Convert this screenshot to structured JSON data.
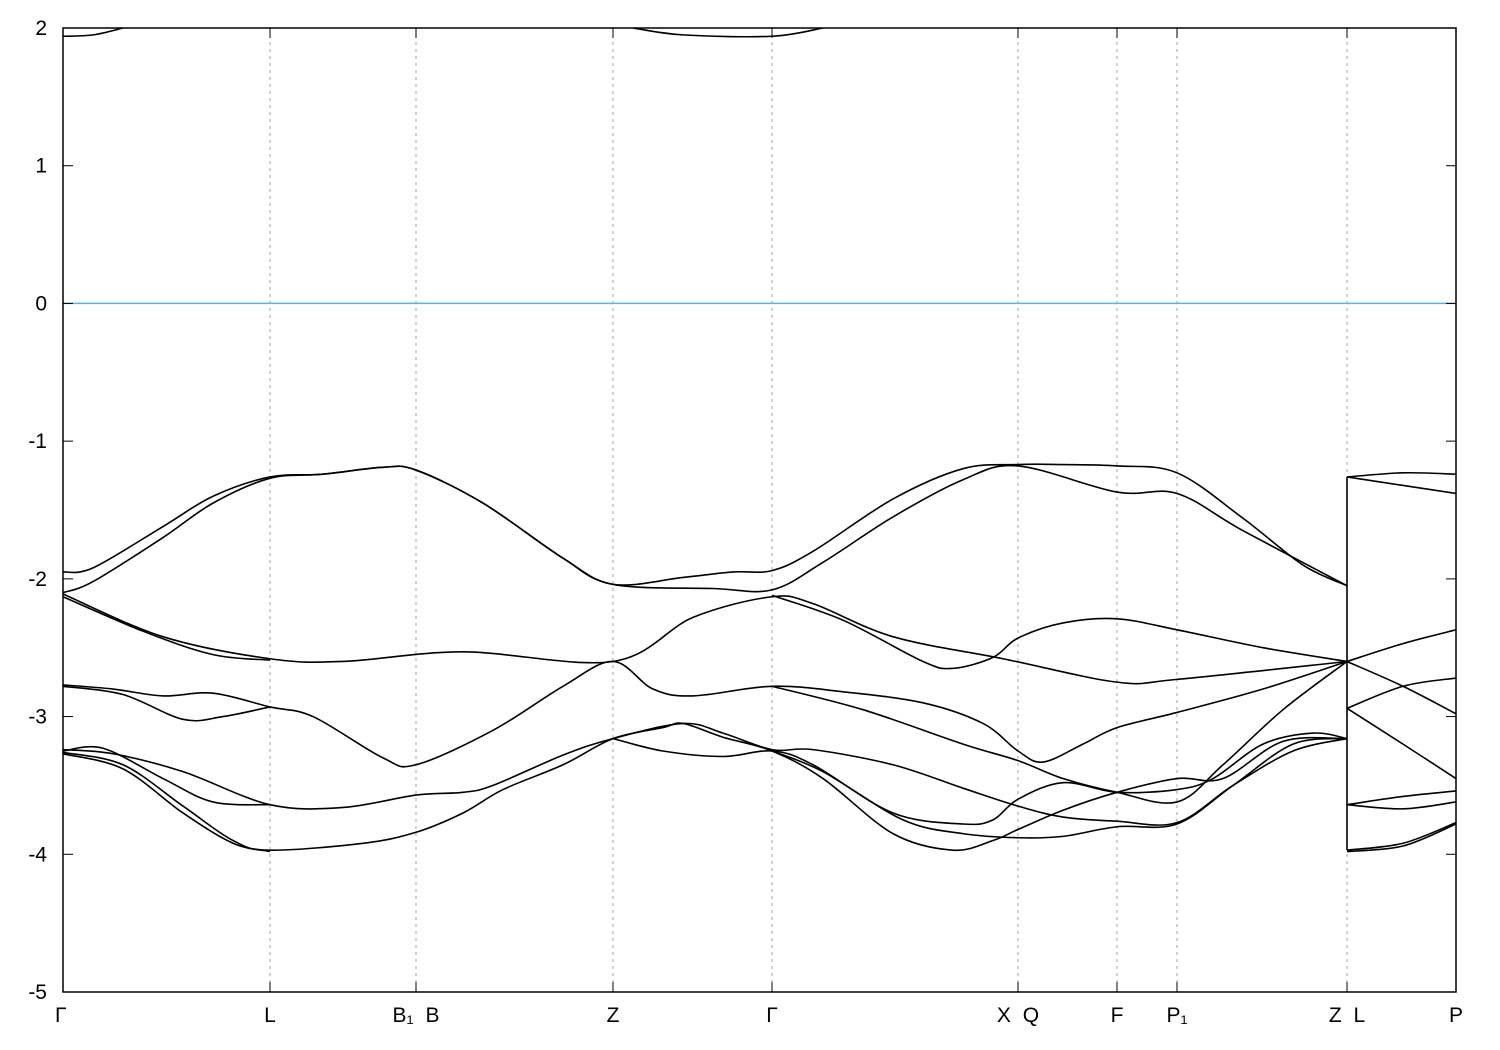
{
  "chart_data": {
    "type": "line",
    "title": "",
    "xlabel": "",
    "ylabel": "",
    "ylim": [
      -5,
      2
    ],
    "yticks": [
      -5,
      -4,
      -3,
      -2,
      -1,
      0,
      1,
      2
    ],
    "xlim": [
      0,
      13.93
    ],
    "grid": "vertical dashed lines at high-symmetry points",
    "legend": "none",
    "colors": {
      "bands": "#000000",
      "fermi": "#56b4e9",
      "grid": "#a0a0a0"
    },
    "reference_line": {
      "y": 0
    },
    "kpoints": [
      {
        "x": 0,
        "label": "Γ"
      },
      {
        "x": 2.07,
        "label": "L"
      },
      {
        "x": 3.53,
        "label": "B₁ B"
      },
      {
        "x": 5.5,
        "label": "Z"
      },
      {
        "x": 7.09,
        "label": "Γ"
      },
      {
        "x": 9.55,
        "label": "X Q"
      },
      {
        "x": 10.54,
        "label": "F"
      },
      {
        "x": 11.14,
        "label": "P₁"
      },
      {
        "x": 12.84,
        "label": "Z L"
      },
      {
        "x": 13.93,
        "label": "P"
      }
    ],
    "series": [
      {
        "points": [
          [
            0,
            1.94
          ],
          [
            0.3,
            1.95
          ],
          [
            0.6,
            2.0
          ]
        ]
      },
      {
        "points": [
          [
            5.7,
            2.0
          ],
          [
            6.2,
            1.95
          ],
          [
            7.09,
            1.94
          ],
          [
            7.6,
            2.0
          ]
        ]
      },
      {
        "points": [
          [
            0,
            -1.95
          ],
          [
            0.3,
            -1.92
          ],
          [
            1.0,
            -1.62
          ],
          [
            1.5,
            -1.4
          ],
          [
            2.07,
            -1.26
          ],
          [
            2.6,
            -1.24
          ],
          [
            3.2,
            -1.19
          ],
          [
            3.53,
            -1.21
          ],
          [
            4.2,
            -1.45
          ],
          [
            5.0,
            -1.85
          ],
          [
            5.5,
            -2.04
          ],
          [
            6.2,
            -1.99
          ],
          [
            6.7,
            -1.95
          ],
          [
            7.09,
            -1.94
          ],
          [
            7.5,
            -1.8
          ],
          [
            8.3,
            -1.42
          ],
          [
            9.0,
            -1.2
          ],
          [
            9.55,
            -1.17
          ],
          [
            10.0,
            -1.17
          ],
          [
            10.54,
            -1.18
          ],
          [
            11.14,
            -1.23
          ],
          [
            11.8,
            -1.56
          ],
          [
            12.4,
            -1.9
          ],
          [
            12.84,
            -2.05
          ]
        ]
      },
      {
        "points": [
          [
            0,
            -2.1
          ],
          [
            0.3,
            -2.02
          ],
          [
            1.0,
            -1.7
          ],
          [
            1.5,
            -1.45
          ],
          [
            2.07,
            -1.27
          ],
          [
            2.6,
            -1.24
          ],
          [
            3.2,
            -1.19
          ],
          [
            3.53,
            -1.21
          ],
          [
            4.2,
            -1.45
          ],
          [
            5.0,
            -1.85
          ],
          [
            5.5,
            -2.04
          ],
          [
            6.5,
            -2.07
          ],
          [
            7.09,
            -2.08
          ],
          [
            7.6,
            -1.88
          ],
          [
            8.3,
            -1.55
          ],
          [
            9.0,
            -1.28
          ],
          [
            9.55,
            -1.18
          ],
          [
            10.54,
            -1.37
          ],
          [
            11.14,
            -1.38
          ],
          [
            11.8,
            -1.65
          ],
          [
            12.84,
            -2.05
          ]
        ]
      },
      {
        "points": [
          [
            12.84,
            -1.26
          ],
          [
            13.4,
            -1.23
          ],
          [
            13.93,
            -1.24
          ]
        ]
      },
      {
        "points": [
          [
            12.84,
            -1.26
          ],
          [
            13.93,
            -1.38
          ]
        ]
      },
      {
        "points": [
          [
            12.84,
            -1.26
          ],
          [
            12.84,
            -3.97
          ]
        ]
      },
      {
        "points": [
          [
            0,
            -2.11
          ],
          [
            1.0,
            -2.42
          ],
          [
            2.07,
            -2.58
          ],
          [
            2.8,
            -2.6
          ],
          [
            4.0,
            -2.53
          ],
          [
            5.5,
            -2.6
          ],
          [
            6.3,
            -2.28
          ],
          [
            7.09,
            -2.13
          ],
          [
            7.5,
            -2.18
          ],
          [
            8.3,
            -2.42
          ],
          [
            9.4,
            -2.58
          ],
          [
            10.54,
            -2.75
          ],
          [
            11.14,
            -2.73
          ],
          [
            12.84,
            -2.6
          ]
        ]
      },
      {
        "points": [
          [
            0,
            -2.13
          ],
          [
            0.8,
            -2.38
          ],
          [
            1.5,
            -2.55
          ],
          [
            2.07,
            -2.59
          ]
        ]
      },
      {
        "points": [
          [
            7.09,
            -2.12
          ],
          [
            7.8,
            -2.3
          ],
          [
            8.6,
            -2.6
          ],
          [
            8.9,
            -2.65
          ],
          [
            9.3,
            -2.57
          ],
          [
            9.55,
            -2.43
          ],
          [
            10.0,
            -2.32
          ],
          [
            10.54,
            -2.29
          ],
          [
            11.14,
            -2.37
          ],
          [
            12.0,
            -2.5
          ],
          [
            12.84,
            -2.6
          ]
        ]
      },
      {
        "points": [
          [
            0,
            -2.77
          ],
          [
            0.5,
            -2.8
          ],
          [
            1.0,
            -2.85
          ],
          [
            1.5,
            -2.83
          ],
          [
            2.07,
            -2.93
          ],
          [
            2.5,
            -3.0
          ],
          [
            3.2,
            -3.3
          ],
          [
            3.53,
            -3.35
          ],
          [
            4.3,
            -3.1
          ],
          [
            5.0,
            -2.78
          ],
          [
            5.5,
            -2.6
          ],
          [
            5.9,
            -2.8
          ],
          [
            6.3,
            -2.85
          ],
          [
            7.09,
            -2.78
          ],
          [
            7.8,
            -2.82
          ],
          [
            8.6,
            -2.9
          ],
          [
            9.2,
            -3.05
          ],
          [
            9.55,
            -3.25
          ],
          [
            9.8,
            -3.33
          ],
          [
            10.2,
            -3.2
          ],
          [
            10.54,
            -3.08
          ],
          [
            11.14,
            -2.97
          ],
          [
            12.0,
            -2.8
          ],
          [
            12.84,
            -2.6
          ]
        ]
      },
      {
        "points": [
          [
            0,
            -2.78
          ],
          [
            0.6,
            -2.84
          ],
          [
            1.2,
            -3.02
          ],
          [
            1.6,
            -3.0
          ],
          [
            2.07,
            -2.93
          ]
        ]
      },
      {
        "points": [
          [
            7.09,
            -2.78
          ],
          [
            8.0,
            -2.95
          ],
          [
            9.0,
            -3.2
          ],
          [
            9.55,
            -3.32
          ],
          [
            10.0,
            -3.45
          ],
          [
            10.54,
            -3.55
          ],
          [
            11.14,
            -3.62
          ],
          [
            11.6,
            -3.35
          ],
          [
            12.2,
            -2.95
          ],
          [
            12.84,
            -2.6
          ]
        ]
      },
      {
        "points": [
          [
            0,
            -3.24
          ],
          [
            0.5,
            -3.27
          ],
          [
            1.2,
            -3.4
          ],
          [
            2.07,
            -3.64
          ],
          [
            2.8,
            -3.66
          ],
          [
            3.53,
            -3.57
          ],
          [
            4.0,
            -3.55
          ],
          [
            4.3,
            -3.5
          ],
          [
            5.0,
            -3.28
          ],
          [
            5.5,
            -3.16
          ],
          [
            6.2,
            -3.05
          ],
          [
            6.6,
            -3.12
          ],
          [
            7.09,
            -3.24
          ],
          [
            7.5,
            -3.24
          ],
          [
            8.3,
            -3.35
          ],
          [
            9.0,
            -3.52
          ],
          [
            9.55,
            -3.65
          ],
          [
            10.0,
            -3.73
          ],
          [
            10.54,
            -3.76
          ],
          [
            11.14,
            -3.77
          ],
          [
            11.7,
            -3.5
          ],
          [
            12.3,
            -3.25
          ],
          [
            12.84,
            -3.16
          ]
        ]
      },
      {
        "points": [
          [
            0,
            -3.25
          ],
          [
            0.4,
            -3.23
          ],
          [
            1.0,
            -3.45
          ],
          [
            1.5,
            -3.62
          ],
          [
            2.07,
            -3.64
          ]
        ]
      },
      {
        "points": [
          [
            5.5,
            -3.16
          ],
          [
            6.0,
            -3.25
          ],
          [
            6.6,
            -3.29
          ],
          [
            7.09,
            -3.25
          ],
          [
            7.5,
            -3.35
          ],
          [
            8.3,
            -3.7
          ],
          [
            9.0,
            -3.78
          ],
          [
            9.3,
            -3.75
          ],
          [
            9.55,
            -3.6
          ],
          [
            10.0,
            -3.48
          ],
          [
            10.54,
            -3.55
          ],
          [
            11.14,
            -3.53
          ],
          [
            11.5,
            -3.45
          ],
          [
            12.0,
            -3.2
          ],
          [
            12.5,
            -3.12
          ],
          [
            12.84,
            -3.16
          ]
        ]
      },
      {
        "points": [
          [
            0,
            -3.26
          ],
          [
            0.6,
            -3.35
          ],
          [
            1.2,
            -3.65
          ],
          [
            1.7,
            -3.9
          ],
          [
            2.07,
            -3.97
          ],
          [
            3.0,
            -3.92
          ],
          [
            3.53,
            -3.84
          ],
          [
            4.0,
            -3.7
          ],
          [
            4.4,
            -3.53
          ],
          [
            5.0,
            -3.35
          ],
          [
            5.5,
            -3.16
          ],
          [
            6.0,
            -3.08
          ],
          [
            6.2,
            -3.05
          ],
          [
            6.6,
            -3.15
          ],
          [
            7.09,
            -3.25
          ],
          [
            7.6,
            -3.45
          ],
          [
            8.3,
            -3.85
          ],
          [
            8.9,
            -3.97
          ],
          [
            9.3,
            -3.9
          ],
          [
            9.55,
            -3.82
          ],
          [
            10.0,
            -3.68
          ],
          [
            10.54,
            -3.55
          ],
          [
            11.14,
            -3.45
          ],
          [
            11.6,
            -3.45
          ],
          [
            12.2,
            -3.18
          ],
          [
            12.84,
            -3.16
          ]
        ]
      },
      {
        "points": [
          [
            0,
            -3.27
          ],
          [
            0.6,
            -3.38
          ],
          [
            1.2,
            -3.7
          ],
          [
            1.7,
            -3.92
          ],
          [
            2.07,
            -3.98
          ]
        ]
      },
      {
        "points": [
          [
            7.09,
            -3.25
          ],
          [
            7.6,
            -3.4
          ],
          [
            8.4,
            -3.75
          ],
          [
            9.0,
            -3.85
          ],
          [
            9.55,
            -3.88
          ],
          [
            10.0,
            -3.87
          ],
          [
            10.54,
            -3.8
          ],
          [
            11.14,
            -3.78
          ],
          [
            11.7,
            -3.5
          ],
          [
            12.3,
            -3.2
          ],
          [
            12.84,
            -3.16
          ]
        ]
      },
      {
        "points": [
          [
            12.84,
            -2.6
          ],
          [
            13.4,
            -2.47
          ],
          [
            13.93,
            -2.37
          ]
        ]
      },
      {
        "points": [
          [
            12.84,
            -2.6
          ],
          [
            13.4,
            -2.78
          ],
          [
            13.93,
            -2.98
          ]
        ]
      },
      {
        "points": [
          [
            12.84,
            -2.94
          ],
          [
            13.4,
            -2.78
          ],
          [
            13.93,
            -2.72
          ]
        ]
      },
      {
        "points": [
          [
            12.84,
            -2.94
          ],
          [
            13.4,
            -3.2
          ],
          [
            13.93,
            -3.45
          ]
        ]
      },
      {
        "points": [
          [
            12.84,
            -3.64
          ],
          [
            13.4,
            -3.58
          ],
          [
            13.93,
            -3.54
          ]
        ]
      },
      {
        "points": [
          [
            12.84,
            -3.64
          ],
          [
            13.4,
            -3.67
          ],
          [
            13.93,
            -3.62
          ]
        ]
      },
      {
        "points": [
          [
            12.84,
            -3.97
          ],
          [
            13.4,
            -3.92
          ],
          [
            13.93,
            -3.77
          ]
        ]
      },
      {
        "points": [
          [
            12.84,
            -3.98
          ],
          [
            13.4,
            -3.94
          ],
          [
            13.93,
            -3.78
          ]
        ]
      }
    ]
  }
}
